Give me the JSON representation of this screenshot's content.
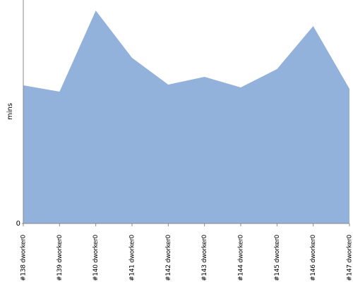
{
  "chart_data": {
    "type": "area",
    "y_label": "mins",
    "categories": [
      "#138 dworker0",
      "#139 dworker0",
      "#140 dworker0",
      "#141 dworker0",
      "#142 dworker0",
      "#143 dworker0",
      "#144 dworker0",
      "#145 dworker0",
      "#146 dworker0",
      "#147 dworker0"
    ],
    "values": [
      1.96,
      1.87,
      3.02,
      2.35,
      1.97,
      2.08,
      1.93,
      2.19,
      2.8,
      1.91
    ],
    "color": "#92b1db",
    "ylim": [
      0,
      3.17
    ],
    "yticks": [
      0
    ]
  }
}
